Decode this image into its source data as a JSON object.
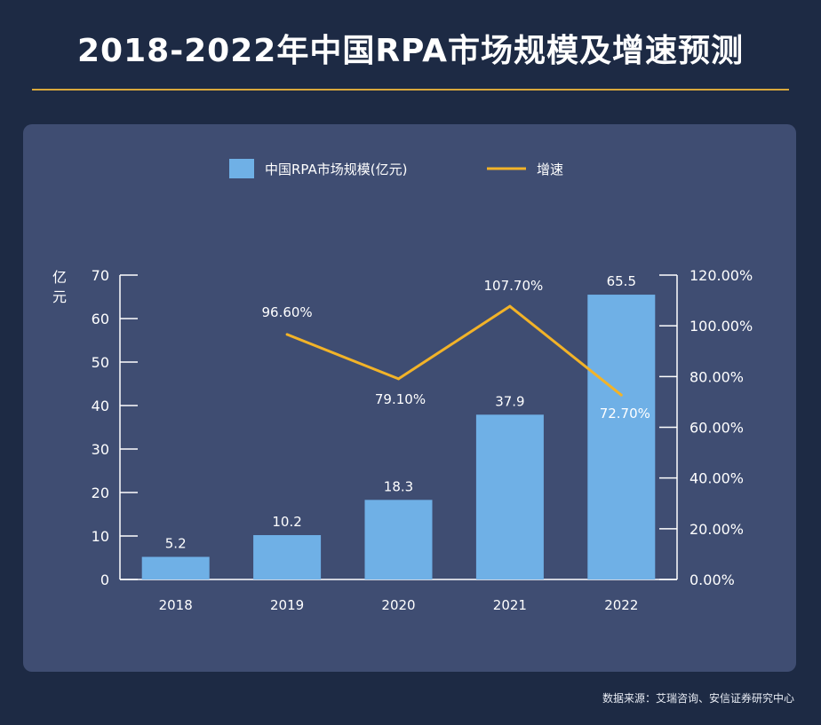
{
  "page": {
    "title": "2018-2022年中国RPA市场规模及增速预测",
    "source": "数据来源：艾瑞咨询、安信证券研究中心"
  },
  "colors": {
    "background": "#1d2a44",
    "panel": "#3f4d72",
    "bar": "#6fb0e6",
    "line": "#f2b328",
    "accent_rule": "#d9a83c",
    "text": "#ffffff"
  },
  "chart_data": {
    "type": "bar",
    "categories": [
      "2018",
      "2019",
      "2020",
      "2021",
      "2022"
    ],
    "ylabel": "亿元",
    "ylim": [
      0,
      70
    ],
    "yticks": [
      "0",
      "10",
      "20",
      "30",
      "40",
      "50",
      "60",
      "70"
    ],
    "y2lim": [
      0,
      120
    ],
    "y2ticks": [
      "0.00%",
      "20.00%",
      "40.00%",
      "60.00%",
      "80.00%",
      "100.00%",
      "120.00%"
    ],
    "legend_placement": "top-center",
    "grid": false,
    "series": [
      {
        "name": "中国RPA市场规模(亿元)",
        "type": "bar",
        "axis": "left",
        "values": [
          5.2,
          10.2,
          18.3,
          37.9,
          65.5
        ],
        "labels": [
          "5.2",
          "10.2",
          "18.3",
          "37.9",
          "65.5"
        ]
      },
      {
        "name": "增速",
        "type": "line",
        "axis": "right",
        "values": [
          null,
          96.6,
          79.1,
          107.7,
          72.7
        ],
        "labels": [
          "",
          "96.60%",
          "79.10%",
          "107.70%",
          "72.70%"
        ]
      }
    ]
  }
}
